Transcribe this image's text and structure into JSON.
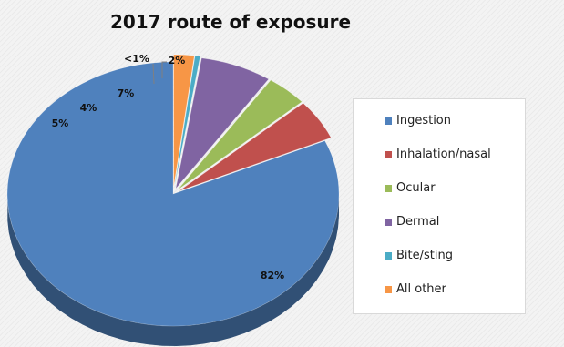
{
  "chart_data": {
    "type": "pie",
    "title": "2017 route of exposure",
    "three_d": true,
    "legend_position": "right",
    "categories": [
      "Ingestion",
      "Inhalation/nasal",
      "Ocular",
      "Dermal",
      "Bite/sting",
      "All other"
    ],
    "values": [
      82,
      5,
      4,
      7,
      0.5,
      2
    ],
    "labels": [
      "82%",
      "5%",
      "4%",
      "7%",
      "<1%",
      "2%"
    ],
    "colors": [
      "#4f81bd",
      "#c0504d",
      "#9bbb59",
      "#8064a2",
      "#4bacc6",
      "#f79646"
    ]
  }
}
